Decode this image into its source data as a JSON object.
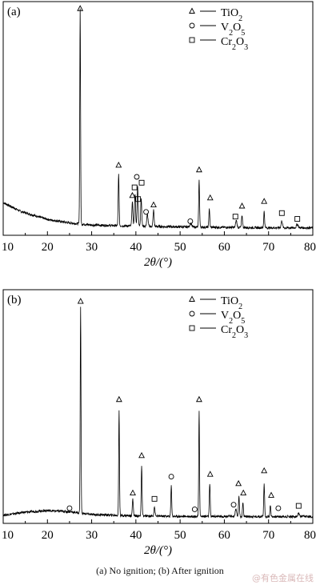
{
  "caption": "(a)  No ignition; (b) After ignition",
  "watermark": "@有色金属在线",
  "chart_data": [
    {
      "type": "line",
      "panel_label": "(a)",
      "xlabel": "2θ/(°)",
      "xlim": [
        10,
        80
      ],
      "xticks": [
        10,
        20,
        30,
        40,
        50,
        60,
        70,
        80
      ],
      "ylim": [
        0,
        100
      ],
      "legend": {
        "placement": "top-right",
        "entries": [
          {
            "marker": "triangle",
            "label": "TiO₂",
            "sub": [
              [
                "Ti",
                false
              ],
              [
                "O",
                false
              ],
              [
                "2",
                true
              ]
            ]
          },
          {
            "marker": "circle",
            "label": "V₂O₅",
            "sub": [
              [
                "V",
                false
              ],
              [
                "2",
                true
              ],
              [
                "O",
                false
              ],
              [
                "5",
                true
              ]
            ]
          },
          {
            "marker": "square",
            "label": "Cr₂O₃",
            "sub": [
              [
                "Cr",
                false
              ],
              [
                "2",
                true
              ],
              [
                "O",
                false
              ],
              [
                "3",
                true
              ]
            ]
          }
        ]
      },
      "baseline": [
        [
          10,
          14
        ],
        [
          14,
          10.2
        ],
        [
          20,
          6.8
        ],
        [
          25,
          5.3
        ],
        [
          30,
          4.4
        ],
        [
          40,
          3.9
        ],
        [
          50,
          3.6
        ],
        [
          60,
          3.4
        ],
        [
          70,
          3.2
        ],
        [
          80,
          3.2
        ]
      ],
      "peaks": [
        {
          "x": 27.4,
          "h": 92,
          "w": 0.09
        },
        {
          "x": 36.1,
          "h": 22,
          "w": 0.1
        },
        {
          "x": 39.2,
          "h": 10,
          "w": 0.12
        },
        {
          "x": 39.8,
          "h": 14,
          "w": 0.12
        },
        {
          "x": 40.4,
          "h": 17,
          "w": 0.12
        },
        {
          "x": 41.2,
          "h": 12,
          "w": 0.12
        },
        {
          "x": 42.6,
          "h": 5,
          "w": 0.15
        },
        {
          "x": 44.0,
          "h": 7,
          "w": 0.12
        },
        {
          "x": 52.4,
          "h": 1.5,
          "w": 0.2
        },
        {
          "x": 54.3,
          "h": 20,
          "w": 0.1
        },
        {
          "x": 56.6,
          "h": 8,
          "w": 0.1
        },
        {
          "x": 62.7,
          "h": 3,
          "w": 0.15
        },
        {
          "x": 64.0,
          "h": 5,
          "w": 0.12
        },
        {
          "x": 69.0,
          "h": 7,
          "w": 0.1
        },
        {
          "x": 73.0,
          "h": 3,
          "w": 0.15
        },
        {
          "x": 76.5,
          "h": 1.5,
          "w": 0.2
        }
      ],
      "markers": [
        {
          "type": "triangle",
          "x": 27.4,
          "y": 97
        },
        {
          "type": "triangle",
          "x": 36.1,
          "y": 30
        },
        {
          "type": "triangle",
          "x": 39.2,
          "y": 17
        },
        {
          "type": "circle",
          "x": 40.2,
          "y": 25
        },
        {
          "type": "square",
          "x": 39.7,
          "y": 20.5
        },
        {
          "type": "square",
          "x": 41.3,
          "y": 22.5
        },
        {
          "type": "square",
          "x": 40.5,
          "y": 15.5
        },
        {
          "type": "circle",
          "x": 42.3,
          "y": 10
        },
        {
          "type": "triangle",
          "x": 44.0,
          "y": 13
        },
        {
          "type": "circle",
          "x": 52.3,
          "y": 6
        },
        {
          "type": "triangle",
          "x": 54.3,
          "y": 28
        },
        {
          "type": "triangle",
          "x": 56.8,
          "y": 16
        },
        {
          "type": "square",
          "x": 62.5,
          "y": 8
        },
        {
          "type": "triangle",
          "x": 64.0,
          "y": 12.5
        },
        {
          "type": "triangle",
          "x": 69.0,
          "y": 14.5
        },
        {
          "type": "square",
          "x": 73.0,
          "y": 9.5
        },
        {
          "type": "square",
          "x": 76.5,
          "y": 7
        }
      ]
    },
    {
      "type": "line",
      "panel_label": "(b)",
      "xlabel": "2θ/(°)",
      "xlim": [
        10,
        80
      ],
      "xticks": [
        10,
        20,
        30,
        40,
        50,
        60,
        70,
        80
      ],
      "ylim": [
        0,
        100
      ],
      "legend": {
        "placement": "top-right",
        "entries": [
          {
            "marker": "triangle",
            "label": "TiO₂",
            "sub": [
              [
                "Ti",
                false
              ],
              [
                "O",
                false
              ],
              [
                "2",
                true
              ]
            ]
          },
          {
            "marker": "circle",
            "label": "V₂O₅",
            "sub": [
              [
                "V",
                false
              ],
              [
                "2",
                true
              ],
              [
                "O",
                false
              ],
              [
                "5",
                true
              ]
            ]
          },
          {
            "marker": "square",
            "label": "Cr₂O₃",
            "sub": [
              [
                "Cr",
                false
              ],
              [
                "2",
                true
              ],
              [
                "O",
                false
              ],
              [
                "3",
                true
              ]
            ]
          }
        ]
      },
      "baseline": [
        [
          10,
          3.5
        ],
        [
          15,
          4.8
        ],
        [
          20,
          5.5
        ],
        [
          25,
          5.0
        ],
        [
          30,
          3.8
        ],
        [
          40,
          3.2
        ],
        [
          50,
          3.0
        ],
        [
          60,
          3.0
        ],
        [
          70,
          2.9
        ],
        [
          80,
          2.9
        ]
      ],
      "peaks": [
        {
          "x": 27.5,
          "h": 88,
          "w": 0.09
        },
        {
          "x": 36.2,
          "h": 45,
          "w": 0.09
        },
        {
          "x": 39.3,
          "h": 7,
          "w": 0.12
        },
        {
          "x": 41.3,
          "h": 21,
          "w": 0.1
        },
        {
          "x": 44.2,
          "h": 4,
          "w": 0.12
        },
        {
          "x": 48.0,
          "h": 13,
          "w": 0.1
        },
        {
          "x": 54.3,
          "h": 45,
          "w": 0.09
        },
        {
          "x": 56.7,
          "h": 14,
          "w": 0.1
        },
        {
          "x": 62.6,
          "h": 3,
          "w": 0.15
        },
        {
          "x": 63.3,
          "h": 9,
          "w": 0.1
        },
        {
          "x": 64.2,
          "h": 6,
          "w": 0.1
        },
        {
          "x": 69.0,
          "h": 14,
          "w": 0.1
        },
        {
          "x": 70.4,
          "h": 5,
          "w": 0.1
        },
        {
          "x": 76.8,
          "h": 1.5,
          "w": 0.15
        }
      ],
      "markers": [
        {
          "type": "triangle",
          "x": 27.5,
          "y": 95
        },
        {
          "type": "circle",
          "x": 25.0,
          "y": 6.5
        },
        {
          "type": "triangle",
          "x": 36.2,
          "y": 53
        },
        {
          "type": "triangle",
          "x": 39.3,
          "y": 13
        },
        {
          "type": "triangle",
          "x": 41.3,
          "y": 29
        },
        {
          "type": "square",
          "x": 44.2,
          "y": 10.5
        },
        {
          "type": "circle",
          "x": 48.0,
          "y": 20
        },
        {
          "type": "circle",
          "x": 53.3,
          "y": 6
        },
        {
          "type": "triangle",
          "x": 54.3,
          "y": 53
        },
        {
          "type": "triangle",
          "x": 56.8,
          "y": 21
        },
        {
          "type": "circle",
          "x": 62.1,
          "y": 8
        },
        {
          "type": "triangle",
          "x": 63.2,
          "y": 17
        },
        {
          "type": "triangle",
          "x": 64.3,
          "y": 13
        },
        {
          "type": "triangle",
          "x": 69.0,
          "y": 22.5
        },
        {
          "type": "triangle",
          "x": 70.6,
          "y": 12
        },
        {
          "type": "circle",
          "x": 72.2,
          "y": 6.5
        },
        {
          "type": "square",
          "x": 76.8,
          "y": 7.5
        }
      ]
    }
  ]
}
